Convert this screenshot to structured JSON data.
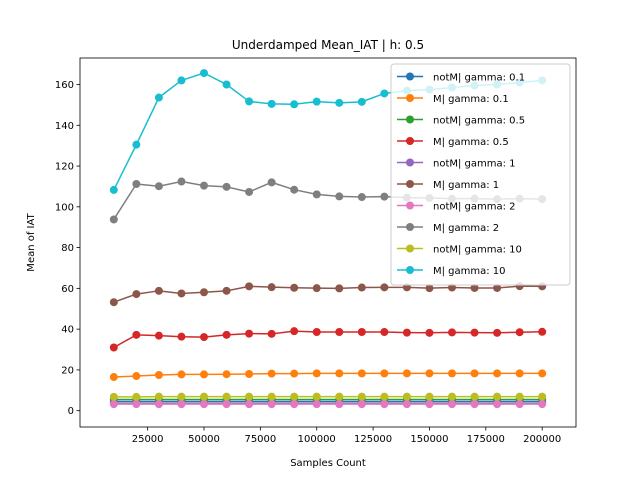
{
  "chart_data": {
    "type": "line",
    "title": "Underdamped Mean_IAT   | h: 0.5",
    "xlabel": "Samples Count",
    "ylabel": "Mean of IAT",
    "xlim": [
      -5000,
      215000
    ],
    "ylim": [
      -8,
      173
    ],
    "xticks": [
      25000,
      50000,
      75000,
      100000,
      125000,
      150000,
      175000,
      200000
    ],
    "xtick_labels": [
      "25000",
      "50000",
      "75000",
      "100000",
      "125000",
      "150000",
      "175000",
      "200000"
    ],
    "yticks": [
      0,
      20,
      40,
      60,
      80,
      100,
      120,
      140,
      160
    ],
    "ytick_labels": [
      "0",
      "20",
      "40",
      "60",
      "80",
      "100",
      "120",
      "140",
      "160"
    ],
    "legend_position": "top-right",
    "x": [
      10000,
      20000,
      30000,
      40000,
      50000,
      60000,
      70000,
      80000,
      90000,
      100000,
      110000,
      120000,
      130000,
      140000,
      150000,
      160000,
      170000,
      180000,
      190000,
      200000
    ],
    "series": [
      {
        "name": "notM| gamma: 0.1",
        "color": "#1f77b4",
        "values": [
          4.5,
          4.5,
          4.5,
          4.5,
          4.5,
          4.5,
          4.5,
          4.5,
          4.5,
          4.5,
          4.5,
          4.5,
          4.5,
          4.5,
          4.5,
          4.5,
          4.5,
          4.5,
          4.5,
          4.5
        ]
      },
      {
        "name": "M| gamma: 0.1",
        "color": "#ff7f0e",
        "values": [
          16.5,
          17,
          17.5,
          17.8,
          17.8,
          17.9,
          18,
          18.2,
          18.2,
          18.3,
          18.3,
          18.3,
          18.3,
          18.3,
          18.3,
          18.3,
          18.3,
          18.3,
          18.3,
          18.3
        ]
      },
      {
        "name": "notM| gamma: 0.5",
        "color": "#2ca02c",
        "values": [
          5.5,
          5.5,
          5.5,
          5.5,
          5.5,
          5.5,
          5.5,
          5.5,
          5.5,
          5.5,
          5.5,
          5.5,
          5.5,
          5.5,
          5.5,
          5.5,
          5.5,
          5.5,
          5.5,
          5.5
        ]
      },
      {
        "name": "M| gamma: 0.5",
        "color": "#d62728",
        "values": [
          31,
          37.2,
          36.8,
          36.3,
          36.1,
          37.2,
          37.8,
          37.7,
          39,
          38.6,
          38.6,
          38.6,
          38.6,
          38.3,
          38.2,
          38.4,
          38.3,
          38.2,
          38.5,
          38.7
        ]
      },
      {
        "name": "notM| gamma: 1",
        "color": "#9467bd",
        "values": [
          3.6,
          3.6,
          3.6,
          3.6,
          3.6,
          3.6,
          3.6,
          3.6,
          3.6,
          3.6,
          3.6,
          3.6,
          3.6,
          3.6,
          3.6,
          3.6,
          3.6,
          3.6,
          3.6,
          3.6
        ]
      },
      {
        "name": "M| gamma: 1",
        "color": "#8c564b",
        "values": [
          53.2,
          57.2,
          58.8,
          57.5,
          58.1,
          58.8,
          61,
          60.6,
          60.3,
          60.1,
          60,
          60.4,
          60.5,
          60.5,
          60.1,
          60.4,
          60.2,
          60.2,
          61.1,
          61
        ]
      },
      {
        "name": "notM| gamma: 2",
        "color": "#e377c2",
        "values": [
          3.2,
          3.2,
          3.2,
          3.2,
          3.2,
          3.2,
          3.2,
          3.2,
          3.2,
          3.2,
          3.2,
          3.2,
          3.2,
          3.2,
          3.2,
          3.2,
          3.2,
          3.2,
          3.2,
          3.2
        ]
      },
      {
        "name": "M| gamma: 2",
        "color": "#7f7f7f",
        "values": [
          93.8,
          111.2,
          110.1,
          112.4,
          110.4,
          109.8,
          107.3,
          112,
          108.4,
          106.1,
          105.1,
          104.8,
          105,
          104.5,
          104.3,
          104,
          104,
          103.8,
          104,
          103.8
        ]
      },
      {
        "name": "notM| gamma: 10",
        "color": "#bcbd22",
        "values": [
          6.8,
          6.8,
          6.9,
          6.9,
          6.9,
          6.9,
          6.9,
          6.9,
          6.9,
          6.9,
          6.9,
          6.9,
          6.9,
          6.9,
          6.9,
          6.9,
          6.9,
          6.9,
          6.9,
          6.9
        ]
      },
      {
        "name": "M| gamma: 10",
        "color": "#17becf",
        "values": [
          108.3,
          130.5,
          153.6,
          162,
          165.6,
          160,
          151.7,
          150.5,
          150.3,
          151.6,
          151,
          151.5,
          155.6,
          157,
          157.5,
          158.5,
          159.5,
          160,
          161,
          162
        ]
      }
    ]
  }
}
